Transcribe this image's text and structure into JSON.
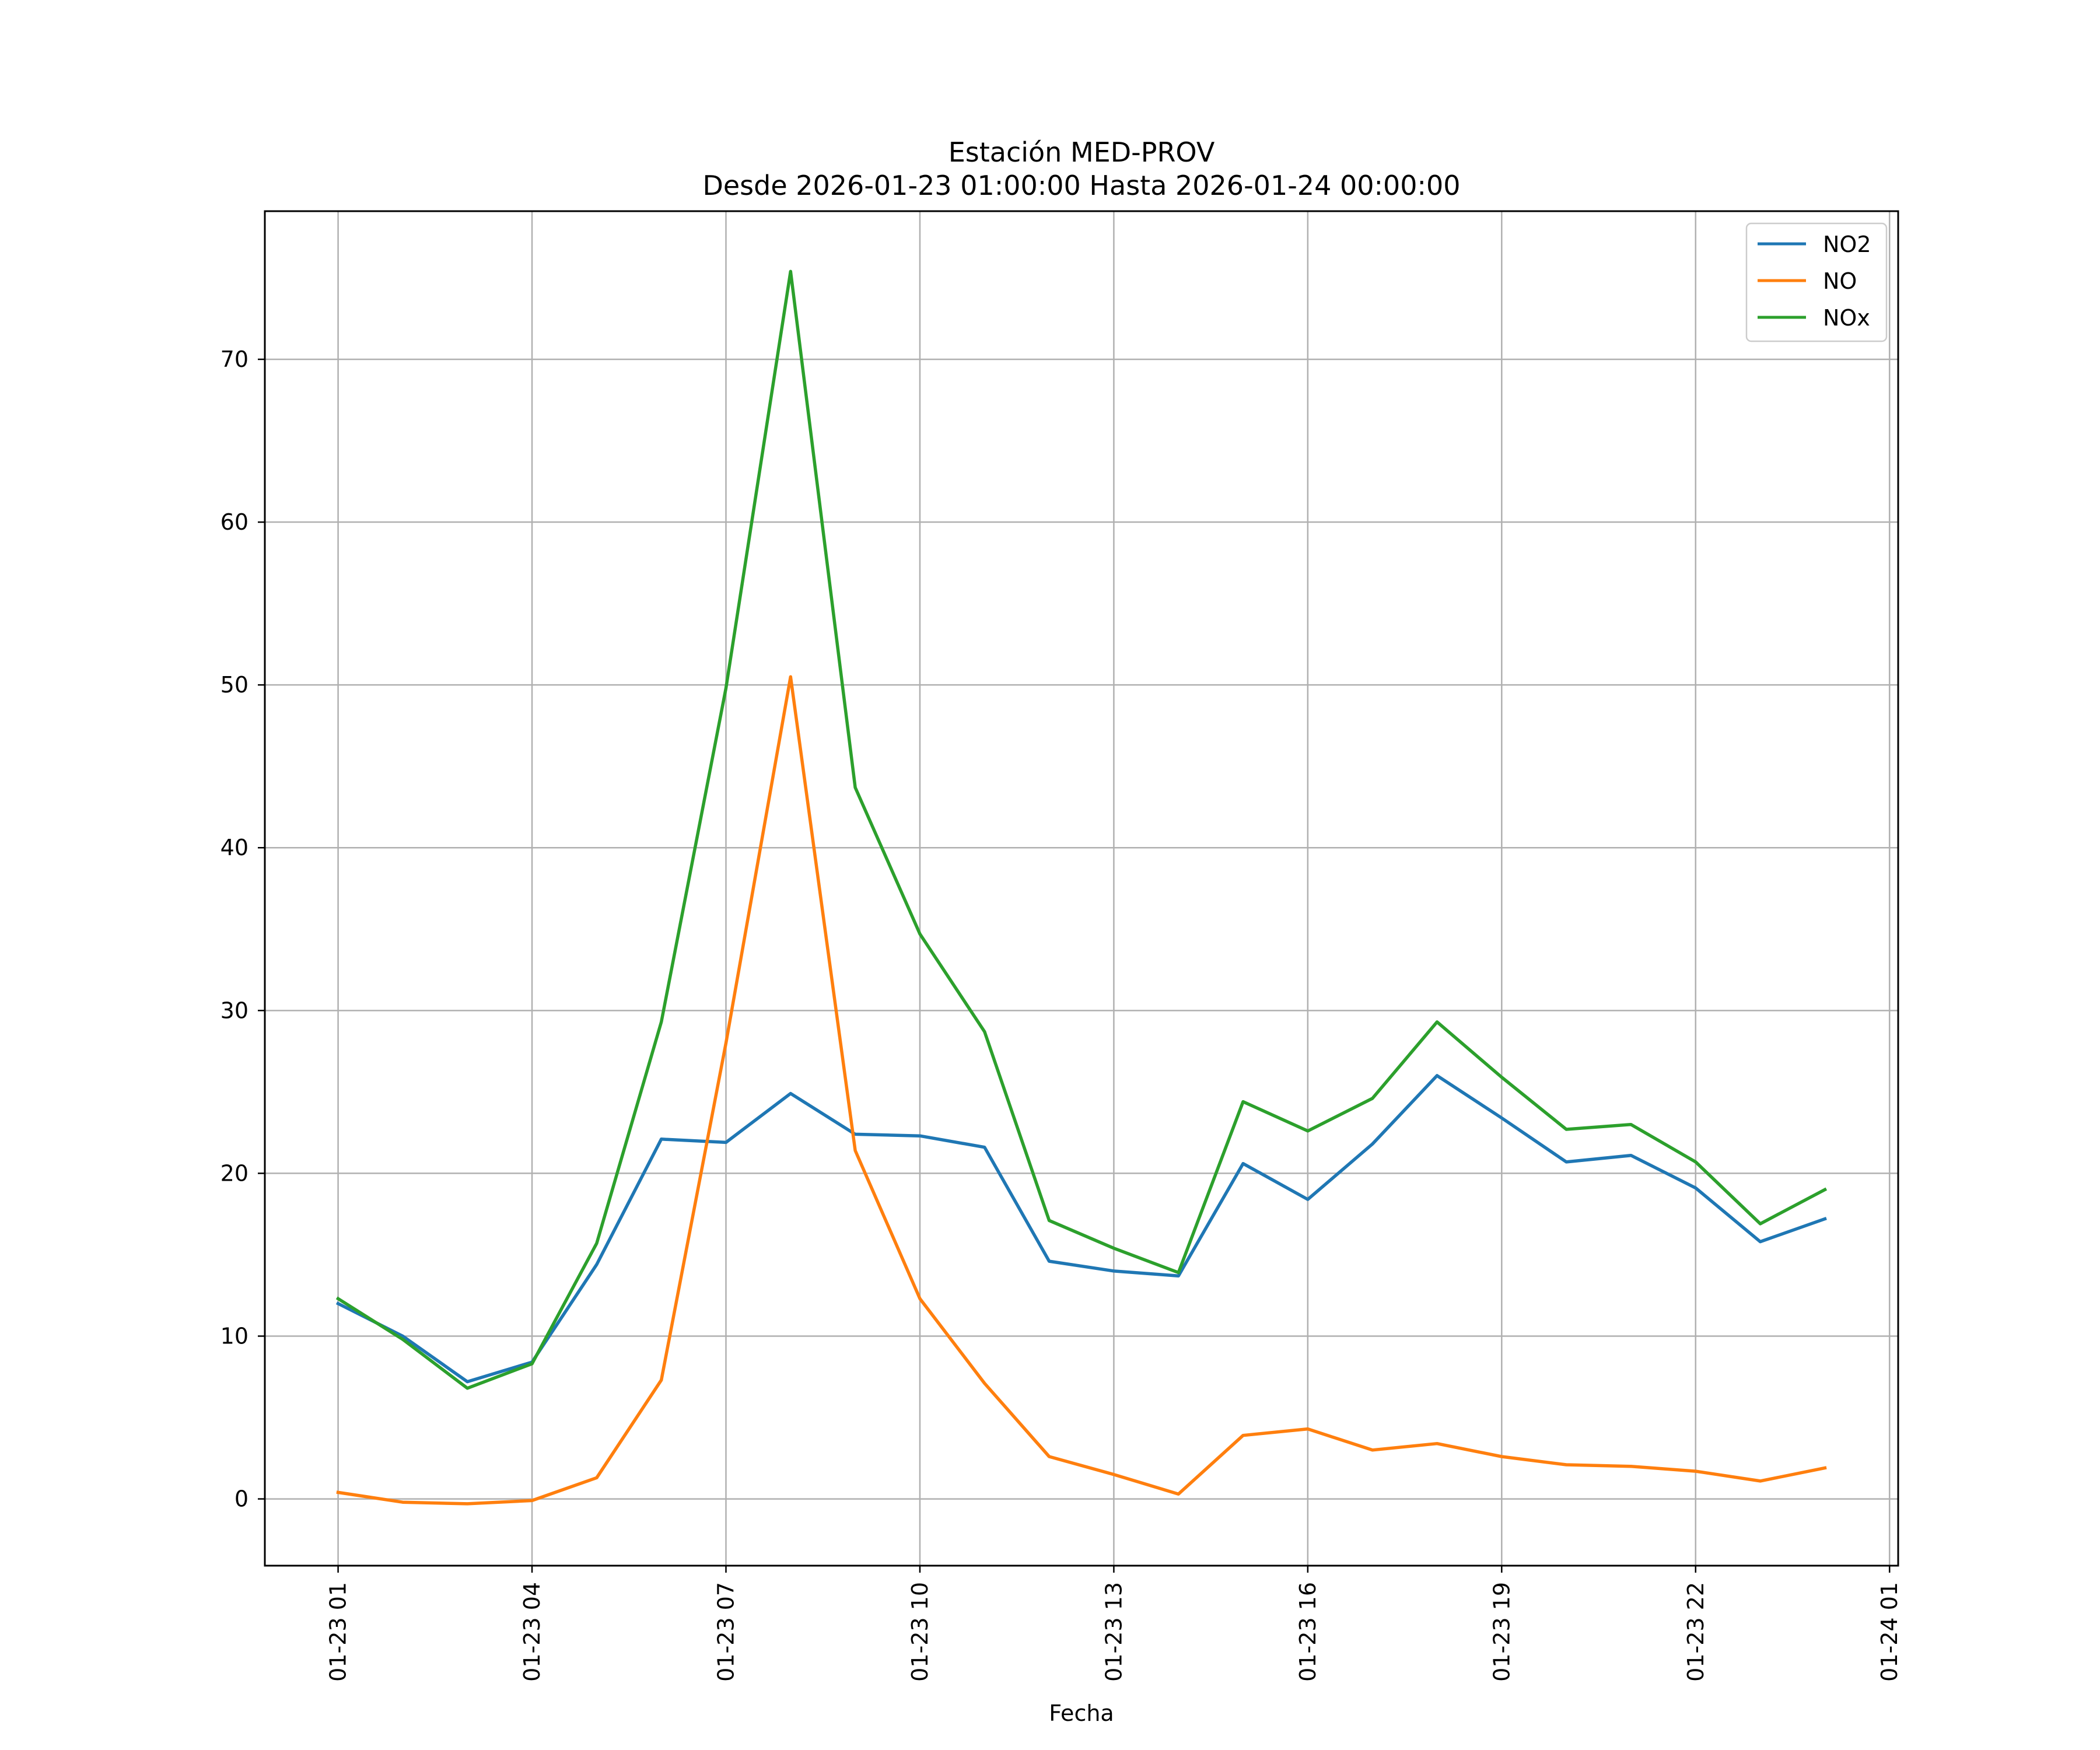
{
  "chart_data": {
    "type": "line",
    "title": "Estación MED-PROV",
    "subtitle": "Desde 2026-01-23 01:00:00 Hasta 2026-01-24 00:00:00",
    "xlabel": "Fecha",
    "ylabel": "",
    "x": [
      "2026-01-23 01:00",
      "2026-01-23 02:00",
      "2026-01-23 03:00",
      "2026-01-23 04:00",
      "2026-01-23 05:00",
      "2026-01-23 06:00",
      "2026-01-23 07:00",
      "2026-01-23 08:00",
      "2026-01-23 09:00",
      "2026-01-23 10:00",
      "2026-01-23 11:00",
      "2026-01-23 12:00",
      "2026-01-23 13:00",
      "2026-01-23 14:00",
      "2026-01-23 15:00",
      "2026-01-23 16:00",
      "2026-01-23 17:00",
      "2026-01-23 18:00",
      "2026-01-23 19:00",
      "2026-01-23 20:00",
      "2026-01-23 21:00",
      "2026-01-23 22:00",
      "2026-01-23 23:00",
      "2026-01-24 00:00"
    ],
    "x_ticks": [
      "01-23 01",
      "01-23 04",
      "01-23 07",
      "01-23 10",
      "01-23 13",
      "01-23 16",
      "01-23 19",
      "01-23 22",
      "01-24 01"
    ],
    "xlim": [
      "2026-01-22 23:52",
      "2026-01-24 01:08"
    ],
    "y_ticks": [
      0,
      10,
      20,
      30,
      40,
      50,
      60,
      70
    ],
    "ylim": [
      -4.1,
      79.1
    ],
    "grid": true,
    "legend_position": "top-right",
    "series": [
      {
        "name": "NO2",
        "color": "#1f77b4",
        "values": [
          12.0,
          10.0,
          7.2,
          8.4,
          14.4,
          22.1,
          21.9,
          24.9,
          22.4,
          22.3,
          21.6,
          14.6,
          14.0,
          13.7,
          20.6,
          18.4,
          21.8,
          26.0,
          23.4,
          20.7,
          21.1,
          19.1,
          15.8,
          17.2
        ]
      },
      {
        "name": "NO",
        "color": "#ff7f0e",
        "values": [
          0.4,
          -0.2,
          -0.3,
          -0.1,
          1.3,
          7.3,
          28.0,
          50.5,
          21.4,
          12.3,
          7.1,
          2.6,
          1.5,
          0.3,
          3.9,
          4.3,
          3.0,
          3.4,
          2.6,
          2.1,
          2.0,
          1.7,
          1.1,
          1.9
        ]
      },
      {
        "name": "NOx",
        "color": "#2ca02c",
        "values": [
          12.3,
          9.8,
          6.8,
          8.3,
          15.7,
          29.3,
          49.8,
          75.4,
          43.7,
          34.7,
          28.7,
          17.1,
          15.4,
          13.9,
          24.4,
          22.6,
          24.6,
          29.3,
          25.9,
          22.7,
          23.0,
          20.7,
          16.9,
          19.0
        ]
      }
    ]
  }
}
